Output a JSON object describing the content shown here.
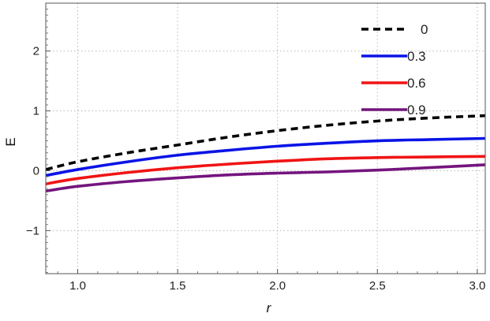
{
  "chart_data": {
    "type": "line",
    "xlabel": "r",
    "ylabel": "E",
    "xlim": [
      0.84,
      3.04
    ],
    "ylim": [
      -1.72,
      2.8
    ],
    "x_ticks": [
      1.0,
      1.5,
      2.0,
      2.5,
      3.0
    ],
    "x_tick_labels": [
      "1.0",
      "1.5",
      "2.0",
      "2.5",
      "3.0"
    ],
    "y_ticks": [
      -1,
      0,
      1,
      2
    ],
    "y_tick_labels": [
      "−1",
      "0",
      "1",
      "2"
    ],
    "grid": true,
    "grid_style": "dotted",
    "legend_position": "top-right",
    "series": [
      {
        "name": "0",
        "color": "#000000",
        "dash": "dashed",
        "x": [
          0.84,
          1.0,
          1.25,
          1.5,
          1.75,
          2.0,
          2.25,
          2.5,
          2.75,
          3.04
        ],
        "y": [
          0.02,
          0.15,
          0.3,
          0.43,
          0.56,
          0.67,
          0.76,
          0.83,
          0.88,
          0.92
        ]
      },
      {
        "name": "0.3",
        "color": "#0a14e6",
        "dash": "solid",
        "x": [
          0.84,
          1.0,
          1.25,
          1.5,
          1.75,
          2.0,
          2.25,
          2.5,
          2.75,
          3.04
        ],
        "y": [
          -0.08,
          0.02,
          0.15,
          0.26,
          0.34,
          0.41,
          0.46,
          0.5,
          0.52,
          0.54
        ]
      },
      {
        "name": "0.6",
        "color": "#f01414",
        "dash": "solid",
        "x": [
          0.84,
          1.0,
          1.25,
          1.5,
          1.75,
          2.0,
          2.25,
          2.5,
          2.75,
          3.04
        ],
        "y": [
          -0.22,
          -0.13,
          -0.03,
          0.05,
          0.11,
          0.16,
          0.2,
          0.22,
          0.23,
          0.24
        ]
      },
      {
        "name": "0.9",
        "color": "#74157d",
        "dash": "solid",
        "x": [
          0.84,
          1.0,
          1.25,
          1.5,
          1.75,
          2.0,
          2.25,
          2.5,
          2.75,
          3.04
        ],
        "y": [
          -0.34,
          -0.26,
          -0.18,
          -0.12,
          -0.07,
          -0.04,
          -0.02,
          0.01,
          0.05,
          0.1
        ]
      }
    ]
  }
}
